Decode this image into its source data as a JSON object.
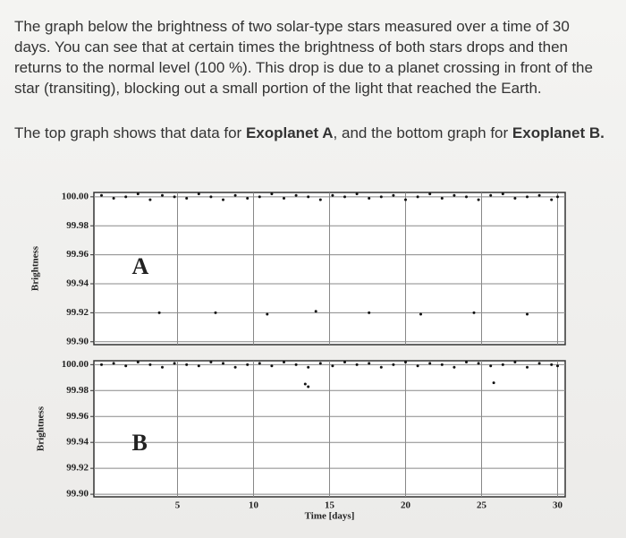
{
  "paragraph1": "The graph below the brightness of two solar-type stars measured over a time of 30 days. You can see that at certain times the brightness of both stars drops and then returns to the normal level (100 %). This drop is due to a planet crossing in front of the star (transiting), blocking out a small portion of the light that reached the Earth.",
  "paragraph2": [
    "The top graph shows that data for ",
    "Exoplanet A",
    ", and the bottom graph for ",
    "Exoplanet B."
  ],
  "chart_data": [
    {
      "type": "scatter",
      "annotation": "A",
      "ylabel": "Brightness",
      "color": "#111",
      "grid": true,
      "show_xtick_labels": false,
      "xlim": [
        -0.5,
        30.5
      ],
      "xticks": [
        5,
        10,
        15,
        20,
        25,
        30
      ],
      "ylim": [
        99.898,
        100.003
      ],
      "yticks": [
        {
          "value": 100,
          "label": "100.00"
        },
        99.98,
        99.96,
        99.94,
        99.92,
        {
          "value": 99.9,
          "label": "99.90"
        }
      ],
      "x": [
        0,
        0.8,
        1.6,
        2.4,
        3.2,
        4,
        4.8,
        5.6,
        6.4,
        7.2,
        8,
        8.8,
        9.6,
        10.4,
        11.2,
        12,
        12.8,
        13.6,
        14.4,
        15.2,
        16,
        16.8,
        17.6,
        18.4,
        19.2,
        20,
        20.8,
        21.6,
        22.4,
        23.2,
        24,
        24.8,
        25.6,
        26.4,
        27.2,
        28,
        28.8,
        29.6,
        30,
        3.8,
        7.5,
        10.9,
        14.1,
        17.6,
        21,
        24.5,
        28
      ],
      "values": [
        100.001,
        99.999,
        100.0,
        100.002,
        99.998,
        100.001,
        100.0,
        99.999,
        100.002,
        100.0,
        99.998,
        100.001,
        99.999,
        100.0,
        100.002,
        99.999,
        100.001,
        100.0,
        99.998,
        100.001,
        100.0,
        100.002,
        99.999,
        100.0,
        100.001,
        99.998,
        100.0,
        100.002,
        99.999,
        100.001,
        100.0,
        99.998,
        100.001,
        100.002,
        99.999,
        100.0,
        100.001,
        99.998,
        100.0,
        99.92,
        99.92,
        99.919,
        99.921,
        99.92,
        99.919,
        99.92,
        99.919
      ]
    },
    {
      "type": "scatter",
      "annotation": "B",
      "ylabel": "Brightness",
      "xlabel": "Time [days]",
      "color": "#111",
      "grid": true,
      "show_xtick_labels": true,
      "xlim": [
        -0.5,
        30.5
      ],
      "xticks": [
        5,
        10,
        15,
        20,
        25,
        30
      ],
      "ylim": [
        99.898,
        100.003
      ],
      "yticks": [
        {
          "value": 100,
          "label": "100.00"
        },
        99.98,
        99.96,
        99.94,
        99.92,
        {
          "value": 99.9,
          "label": "99.90"
        }
      ],
      "x": [
        0,
        0.8,
        1.6,
        2.4,
        3.2,
        4,
        4.8,
        5.6,
        6.4,
        7.2,
        8,
        8.8,
        9.6,
        10.4,
        11.2,
        12,
        12.8,
        13.6,
        14.4,
        15.2,
        16,
        16.8,
        17.6,
        18.4,
        19.2,
        20,
        20.8,
        21.6,
        22.4,
        23.2,
        24,
        24.8,
        25.6,
        26.4,
        27.2,
        28,
        28.8,
        29.6,
        30,
        13.4,
        13.6,
        25.8
      ],
      "values": [
        100.0,
        100.001,
        99.999,
        100.002,
        100.0,
        99.998,
        100.001,
        100.0,
        99.999,
        100.002,
        100.001,
        99.998,
        100.0,
        100.001,
        99.999,
        100.002,
        100.0,
        99.998,
        100.001,
        99.999,
        100.002,
        100.0,
        100.001,
        99.998,
        100.0,
        100.002,
        99.999,
        100.001,
        100.0,
        99.998,
        100.002,
        100.001,
        99.999,
        100.0,
        100.002,
        99.998,
        100.001,
        100.0,
        99.999,
        99.985,
        99.983,
        99.986
      ]
    }
  ]
}
